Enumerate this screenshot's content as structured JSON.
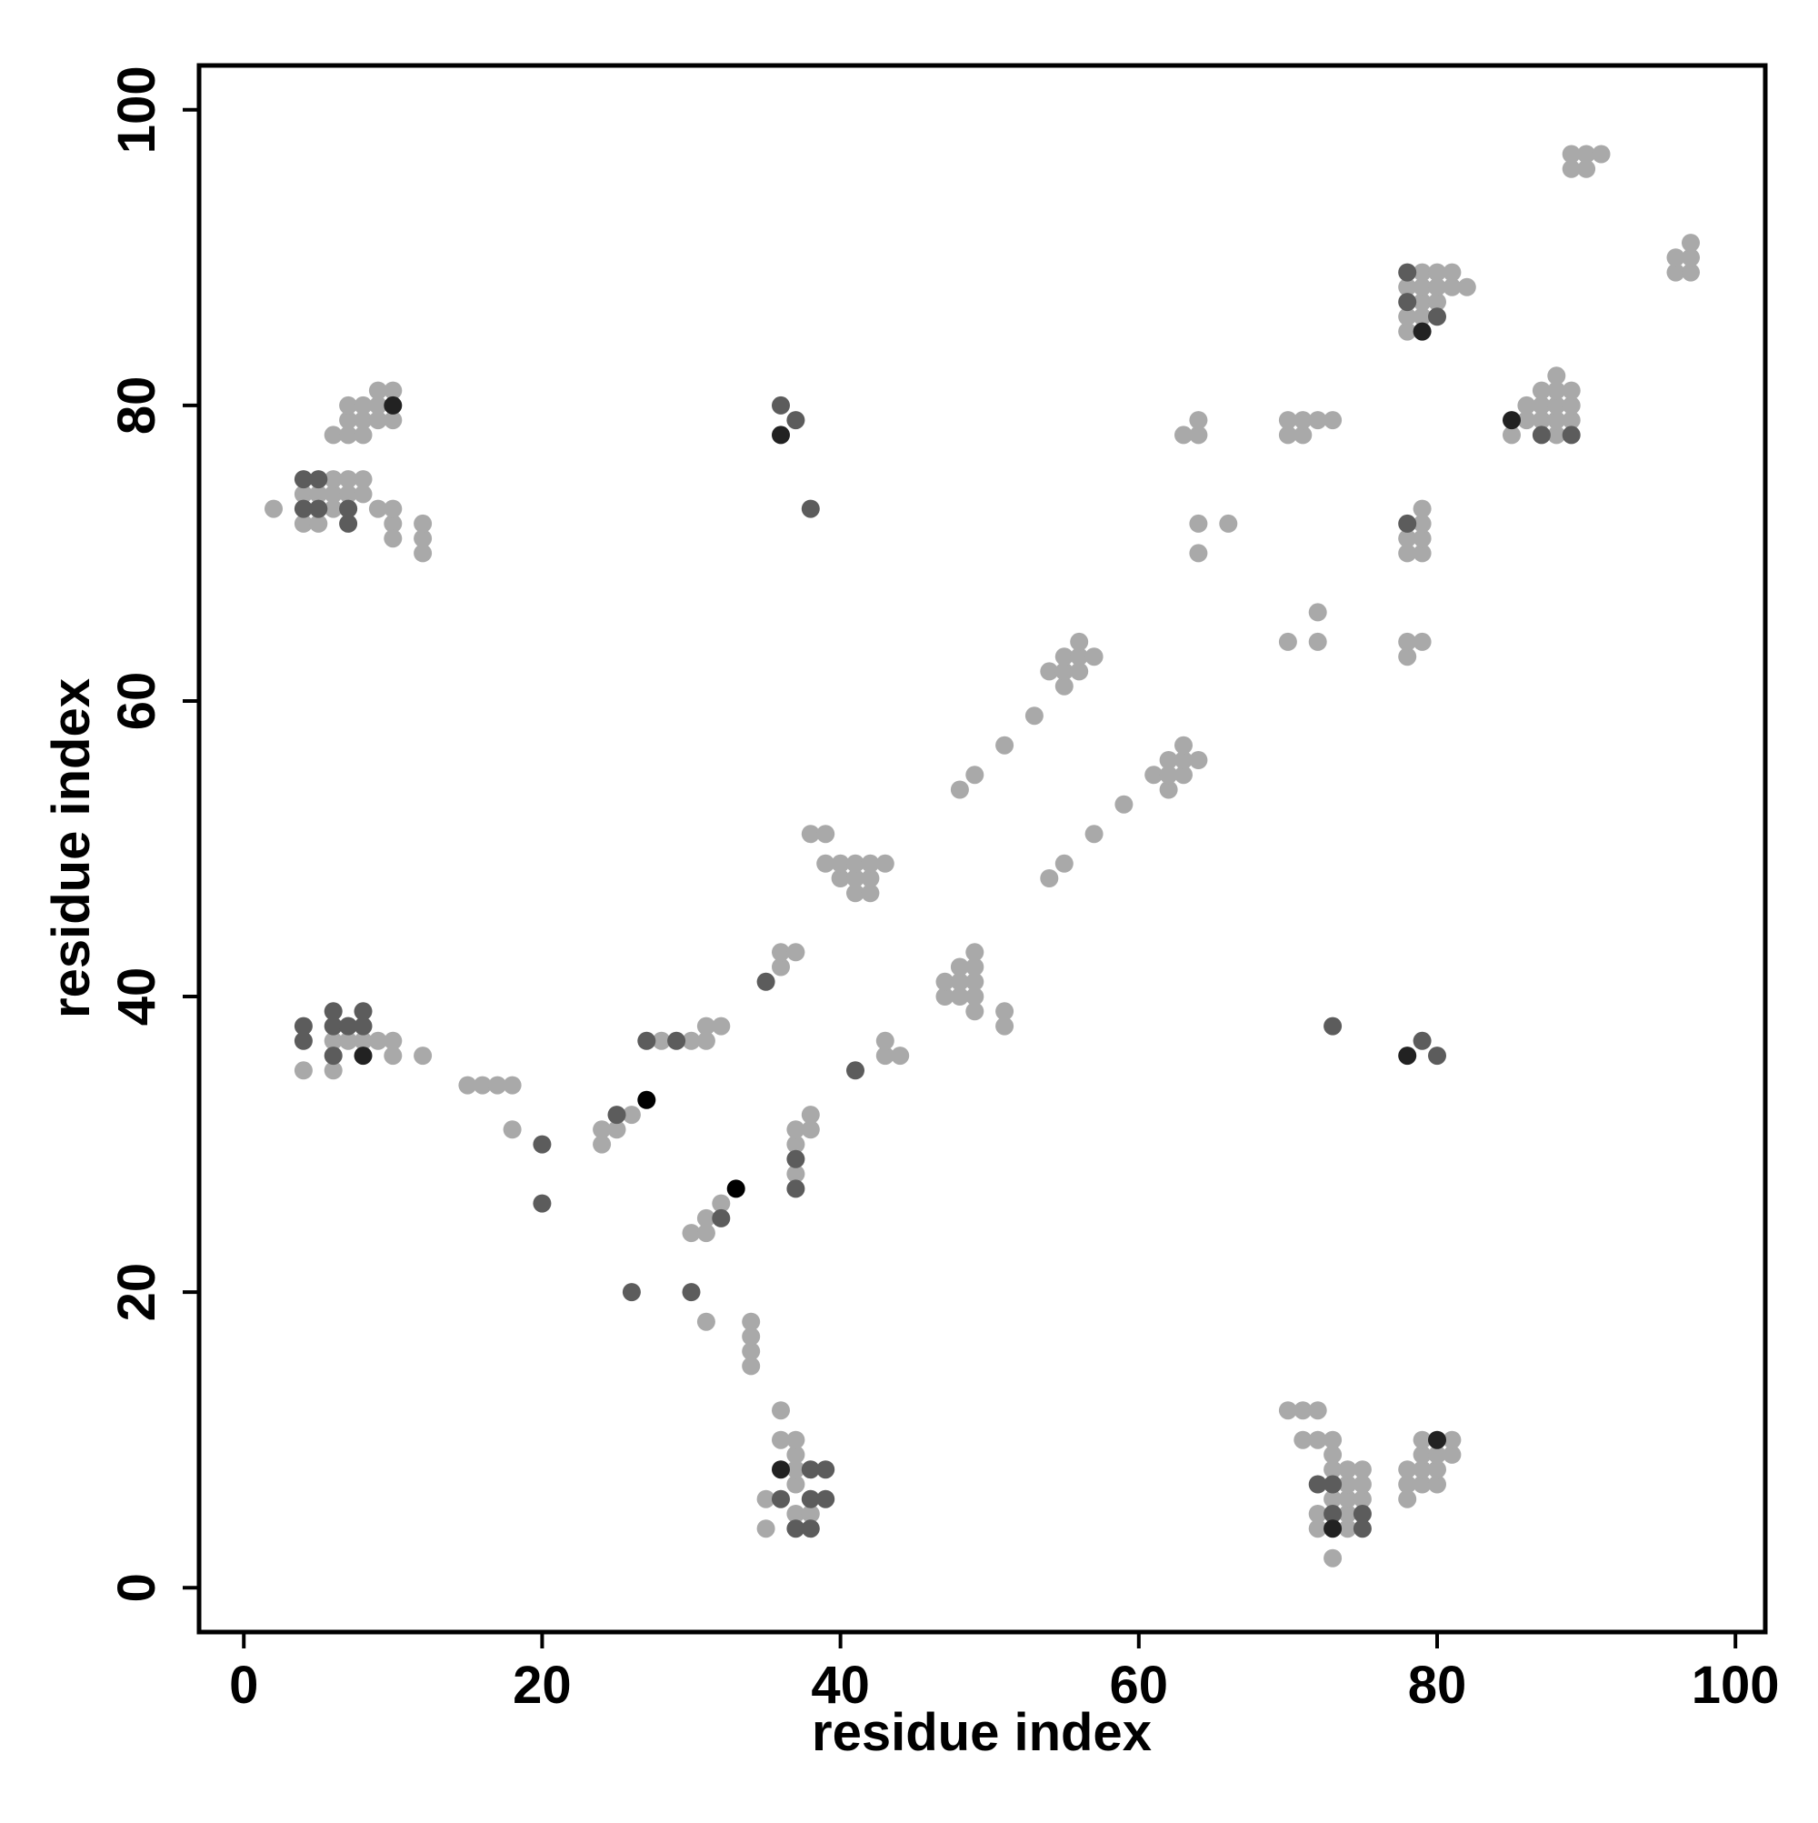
{
  "chart_data": {
    "type": "scatter",
    "title": "",
    "xlabel": "residue index",
    "ylabel": "residue index",
    "xlim": [
      -3,
      102
    ],
    "ylim": [
      -3,
      103
    ],
    "xticks": [
      0,
      20,
      40,
      60,
      80,
      100
    ],
    "yticks": [
      0,
      20,
      40,
      60,
      80,
      100
    ],
    "xtick_labels": [
      "0",
      "20",
      "40",
      "60",
      "80",
      "100"
    ],
    "ytick_labels": [
      "0",
      "20",
      "40",
      "60",
      "80",
      "100"
    ],
    "grid": false,
    "legend": "none",
    "colors": {
      "light": "#a9a9a9",
      "mid": "#5c5c5c",
      "dark": "#222222",
      "black": "#000000"
    },
    "series": [
      {
        "shade": "light",
        "points": [
          [
            2,
            73
          ],
          [
            4,
            72
          ],
          [
            4,
            74
          ],
          [
            5,
            72
          ],
          [
            5,
            74
          ],
          [
            6,
            73
          ],
          [
            6,
            74
          ],
          [
            6,
            75
          ],
          [
            7,
            73
          ],
          [
            7,
            74
          ],
          [
            7,
            75
          ],
          [
            8,
            74
          ],
          [
            8,
            75
          ],
          [
            9,
            73
          ],
          [
            10,
            72
          ],
          [
            10,
            73
          ],
          [
            10,
            71
          ],
          [
            12,
            70
          ],
          [
            12,
            71
          ],
          [
            12,
            72
          ],
          [
            6,
            78
          ],
          [
            7,
            78
          ],
          [
            7,
            79
          ],
          [
            7,
            80
          ],
          [
            8,
            78
          ],
          [
            8,
            79
          ],
          [
            8,
            80
          ],
          [
            9,
            79
          ],
          [
            9,
            80
          ],
          [
            9,
            81
          ],
          [
            10,
            79
          ],
          [
            10,
            81
          ],
          [
            4,
            35
          ],
          [
            6,
            35
          ],
          [
            6,
            37
          ],
          [
            7,
            37
          ],
          [
            7,
            38
          ],
          [
            8,
            37
          ],
          [
            9,
            37
          ],
          [
            10,
            36
          ],
          [
            10,
            37
          ],
          [
            12,
            36
          ],
          [
            15,
            34
          ],
          [
            16,
            34
          ],
          [
            17,
            34
          ],
          [
            18,
            34
          ],
          [
            18,
            31
          ],
          [
            24,
            30
          ],
          [
            24,
            31
          ],
          [
            25,
            31
          ],
          [
            26,
            32
          ],
          [
            28,
            37
          ],
          [
            30,
            37
          ],
          [
            31,
            37
          ],
          [
            31,
            38
          ],
          [
            32,
            38
          ],
          [
            30,
            24
          ],
          [
            31,
            24
          ],
          [
            31,
            25
          ],
          [
            32,
            26
          ],
          [
            31,
            18
          ],
          [
            34,
            15
          ],
          [
            34,
            16
          ],
          [
            34,
            17
          ],
          [
            34,
            18
          ],
          [
            36,
            42
          ],
          [
            36,
            43
          ],
          [
            37,
            43
          ],
          [
            37,
            30
          ],
          [
            37,
            31
          ],
          [
            37,
            28
          ],
          [
            38,
            31
          ],
          [
            38,
            32
          ],
          [
            38,
            51
          ],
          [
            39,
            51
          ],
          [
            39,
            49
          ],
          [
            40,
            48
          ],
          [
            40,
            49
          ],
          [
            41,
            47
          ],
          [
            41,
            48
          ],
          [
            41,
            49
          ],
          [
            42,
            47
          ],
          [
            42,
            48
          ],
          [
            42,
            49
          ],
          [
            43,
            49
          ],
          [
            43,
            36
          ],
          [
            43,
            37
          ],
          [
            44,
            36
          ],
          [
            47,
            40
          ],
          [
            47,
            41
          ],
          [
            48,
            40
          ],
          [
            48,
            41
          ],
          [
            48,
            42
          ],
          [
            49,
            39
          ],
          [
            49,
            40
          ],
          [
            49,
            41
          ],
          [
            49,
            42
          ],
          [
            49,
            43
          ],
          [
            51,
            38
          ],
          [
            51,
            39
          ],
          [
            48,
            54
          ],
          [
            49,
            55
          ],
          [
            51,
            57
          ],
          [
            53,
            59
          ],
          [
            54,
            48
          ],
          [
            55,
            49
          ],
          [
            57,
            51
          ],
          [
            59,
            53
          ],
          [
            54,
            62
          ],
          [
            55,
            61
          ],
          [
            55,
            62
          ],
          [
            55,
            63
          ],
          [
            56,
            62
          ],
          [
            56,
            63
          ],
          [
            56,
            64
          ],
          [
            57,
            63
          ],
          [
            61,
            55
          ],
          [
            62,
            54
          ],
          [
            62,
            55
          ],
          [
            62,
            56
          ],
          [
            63,
            55
          ],
          [
            63,
            56
          ],
          [
            63,
            57
          ],
          [
            64,
            56
          ],
          [
            63,
            78
          ],
          [
            64,
            78
          ],
          [
            64,
            79
          ],
          [
            64,
            72
          ],
          [
            64,
            70
          ],
          [
            66,
            72
          ],
          [
            70,
            64
          ],
          [
            72,
            64
          ],
          [
            72,
            66
          ],
          [
            70,
            78
          ],
          [
            70,
            79
          ],
          [
            71,
            78
          ],
          [
            71,
            79
          ],
          [
            72,
            79
          ],
          [
            73,
            79
          ],
          [
            78,
            63
          ],
          [
            78,
            64
          ],
          [
            79,
            64
          ],
          [
            78,
            70
          ],
          [
            78,
            71
          ],
          [
            79,
            70
          ],
          [
            79,
            71
          ],
          [
            79,
            72
          ],
          [
            79,
            73
          ],
          [
            78,
            85
          ],
          [
            78,
            86
          ],
          [
            78,
            88
          ],
          [
            79,
            86
          ],
          [
            79,
            87
          ],
          [
            79,
            88
          ],
          [
            79,
            89
          ],
          [
            80,
            87
          ],
          [
            80,
            88
          ],
          [
            80,
            89
          ],
          [
            81,
            88
          ],
          [
            81,
            89
          ],
          [
            82,
            88
          ],
          [
            85,
            78
          ],
          [
            86,
            79
          ],
          [
            86,
            80
          ],
          [
            87,
            79
          ],
          [
            87,
            80
          ],
          [
            87,
            81
          ],
          [
            88,
            78
          ],
          [
            88,
            79
          ],
          [
            88,
            80
          ],
          [
            88,
            81
          ],
          [
            88,
            82
          ],
          [
            89,
            79
          ],
          [
            89,
            80
          ],
          [
            89,
            81
          ],
          [
            89,
            96
          ],
          [
            89,
            97
          ],
          [
            90,
            96
          ],
          [
            90,
            97
          ],
          [
            91,
            97
          ],
          [
            96,
            89
          ],
          [
            96,
            90
          ],
          [
            97,
            89
          ],
          [
            97,
            90
          ],
          [
            97,
            91
          ],
          [
            35,
            4
          ],
          [
            35,
            6
          ],
          [
            36,
            10
          ],
          [
            36,
            12
          ],
          [
            37,
            5
          ],
          [
            37,
            7
          ],
          [
            37,
            8
          ],
          [
            37,
            9
          ],
          [
            37,
            10
          ],
          [
            38,
            5
          ],
          [
            70,
            12
          ],
          [
            71,
            10
          ],
          [
            71,
            12
          ],
          [
            72,
            10
          ],
          [
            72,
            12
          ],
          [
            72,
            4
          ],
          [
            72,
            5
          ],
          [
            73,
            2
          ],
          [
            73,
            6
          ],
          [
            73,
            8
          ],
          [
            73,
            9
          ],
          [
            73,
            10
          ],
          [
            74,
            4
          ],
          [
            74,
            5
          ],
          [
            74,
            6
          ],
          [
            74,
            7
          ],
          [
            74,
            8
          ],
          [
            75,
            6
          ],
          [
            75,
            7
          ],
          [
            75,
            8
          ],
          [
            78,
            6
          ],
          [
            78,
            7
          ],
          [
            78,
            8
          ],
          [
            79,
            7
          ],
          [
            79,
            8
          ],
          [
            79,
            9
          ],
          [
            79,
            10
          ],
          [
            80,
            7
          ],
          [
            80,
            8
          ],
          [
            80,
            9
          ],
          [
            81,
            9
          ],
          [
            81,
            10
          ]
        ]
      },
      {
        "shade": "mid",
        "points": [
          [
            4,
            73
          ],
          [
            4,
            75
          ],
          [
            5,
            73
          ],
          [
            5,
            75
          ],
          [
            7,
            72
          ],
          [
            7,
            73
          ],
          [
            4,
            37
          ],
          [
            4,
            38
          ],
          [
            6,
            36
          ],
          [
            6,
            38
          ],
          [
            6,
            39
          ],
          [
            7,
            38
          ],
          [
            8,
            38
          ],
          [
            8,
            39
          ],
          [
            20,
            26
          ],
          [
            20,
            30
          ],
          [
            25,
            32
          ],
          [
            26,
            20
          ],
          [
            27,
            37
          ],
          [
            29,
            37
          ],
          [
            30,
            20
          ],
          [
            32,
            25
          ],
          [
            35,
            41
          ],
          [
            36,
            80
          ],
          [
            37,
            79
          ],
          [
            38,
            73
          ],
          [
            37,
            27
          ],
          [
            37,
            29
          ],
          [
            41,
            35
          ],
          [
            36,
            6
          ],
          [
            37,
            4
          ],
          [
            38,
            4
          ],
          [
            38,
            6
          ],
          [
            38,
            8
          ],
          [
            39,
            6
          ],
          [
            39,
            8
          ],
          [
            72,
            7
          ],
          [
            73,
            5
          ],
          [
            73,
            7
          ],
          [
            75,
            4
          ],
          [
            75,
            5
          ],
          [
            73,
            38
          ],
          [
            78,
            72
          ],
          [
            78,
            87
          ],
          [
            78,
            89
          ],
          [
            80,
            86
          ],
          [
            79,
            37
          ],
          [
            80,
            36
          ],
          [
            87,
            78
          ],
          [
            89,
            78
          ]
        ]
      },
      {
        "shade": "dark",
        "points": [
          [
            8,
            36
          ],
          [
            10,
            80
          ],
          [
            36,
            78
          ],
          [
            36,
            8
          ],
          [
            73,
            4
          ],
          [
            78,
            36
          ],
          [
            79,
            85
          ],
          [
            80,
            10
          ],
          [
            85,
            79
          ]
        ]
      },
      {
        "shade": "black",
        "points": [
          [
            27,
            33
          ],
          [
            33,
            27
          ]
        ]
      }
    ]
  }
}
